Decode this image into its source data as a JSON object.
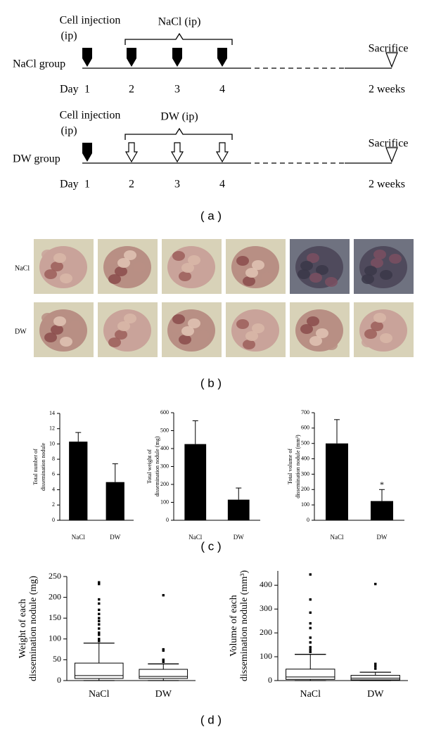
{
  "timeline": {
    "groups": [
      {
        "label": "NaCl group",
        "injection": [
          "Cell injection",
          "(ip)"
        ],
        "treatment": "NaCl (ip)",
        "end": "Sacrifice",
        "day_label": "Day",
        "days": [
          "1",
          "2",
          "3",
          "4",
          "2 weeks"
        ],
        "arrows": "filled"
      },
      {
        "label": "DW group",
        "injection": [
          "Cell injection",
          "(ip)"
        ],
        "treatment": "DW (ip)",
        "end": "Sacrifice",
        "day_label": "Day",
        "days": [
          "1",
          "2",
          "3",
          "4",
          "2 weeks"
        ],
        "arrows": "open"
      }
    ]
  },
  "photos": {
    "rows": [
      {
        "label": "NaCl"
      },
      {
        "label": "DW"
      }
    ]
  },
  "panel_labels": [
    "( a )",
    "( b )",
    "( c )",
    "( d )"
  ],
  "chart_data": [
    {
      "type": "bar",
      "ylabel": [
        "Total number of",
        "dissemination nodule"
      ],
      "categories": [
        "NaCl",
        "DW"
      ],
      "values": [
        10.3,
        5.0
      ],
      "errors": [
        1.2,
        2.4
      ],
      "color": "#000000",
      "ylim": [
        0,
        14
      ],
      "yticks": [
        0,
        2,
        4,
        6,
        8,
        10,
        12,
        14
      ]
    },
    {
      "type": "bar",
      "ylabel": [
        "Total weight of",
        "dissemination nodule (mg)"
      ],
      "categories": [
        "NaCl",
        "DW"
      ],
      "values": [
        425,
        115
      ],
      "errors": [
        130,
        65
      ],
      "color": "#000000",
      "ylim": [
        0,
        600
      ],
      "yticks": [
        0,
        100,
        200,
        300,
        400,
        500,
        600
      ]
    },
    {
      "type": "bar",
      "ylabel": [
        "Total volume of",
        "dissemination nodule (mm³)"
      ],
      "categories": [
        "NaCl",
        "DW"
      ],
      "values": [
        500,
        125
      ],
      "errors": [
        155,
        75
      ],
      "color": "#000000",
      "ylim": [
        0,
        700
      ],
      "yticks": [
        0,
        100,
        200,
        300,
        400,
        500,
        600,
        700
      ],
      "annotations": [
        {
          "text": "*",
          "category": "DW"
        }
      ]
    },
    {
      "type": "box",
      "ylabel": [
        "Weight of each",
        "dissemination nodule (mg)"
      ],
      "categories": [
        "NaCl",
        "DW"
      ],
      "ylim": [
        0,
        250
      ],
      "yticks": [
        0,
        50,
        100,
        150,
        200,
        250
      ],
      "boxes": [
        {
          "min": 0,
          "q1": 5,
          "median": 12,
          "q3": 42,
          "max": 90,
          "outliers": [
            236,
            232,
            195,
            185,
            170,
            160,
            150,
            143,
            135,
            125,
            115,
            110,
            100,
            95
          ]
        },
        {
          "min": 0,
          "q1": 5,
          "median": 10,
          "q3": 27,
          "max": 40,
          "outliers": [
            205,
            75,
            72,
            50,
            45
          ]
        }
      ]
    },
    {
      "type": "box",
      "ylabel": [
        "Volume of each",
        "dissemination nodule (mm³)"
      ],
      "categories": [
        "NaCl",
        "DW"
      ],
      "ylim": [
        0,
        460
      ],
      "yticks": [
        0,
        100,
        200,
        300,
        400
      ],
      "boxes": [
        {
          "min": 0,
          "q1": 5,
          "median": 15,
          "q3": 48,
          "max": 110,
          "outliers": [
            445,
            340,
            285,
            240,
            220,
            180,
            160,
            140,
            130,
            120
          ]
        },
        {
          "min": 0,
          "q1": 3,
          "median": 10,
          "q3": 22,
          "max": 35,
          "outliers": [
            405,
            70,
            60,
            50
          ]
        }
      ]
    }
  ]
}
